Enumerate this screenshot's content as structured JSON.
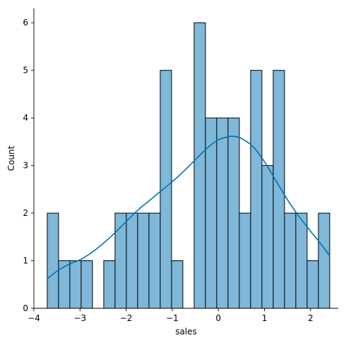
{
  "chart_data": {
    "type": "bar",
    "title": "",
    "xlabel": "sales",
    "ylabel": "Count",
    "xlim": [
      -4,
      2.6
    ],
    "ylim": [
      0,
      6.3
    ],
    "x_ticks": [
      -4,
      -3,
      -2,
      -1,
      0,
      1,
      2
    ],
    "x_tick_labels": [
      "−4",
      "−3",
      "−2",
      "−1",
      "0",
      "1",
      "2"
    ],
    "y_ticks": [
      0,
      1,
      2,
      3,
      4,
      5,
      6
    ],
    "y_tick_labels": [
      "0",
      "1",
      "2",
      "3",
      "4",
      "5",
      "6"
    ],
    "bin_edges": [
      -3.71,
      -3.465,
      -3.22,
      -2.975,
      -2.73,
      -2.485,
      -2.24,
      -1.995,
      -1.75,
      -1.505,
      -1.26,
      -1.015,
      -0.77,
      -0.525,
      -0.28,
      -0.035,
      0.21,
      0.455,
      0.7,
      0.945,
      1.19,
      1.435,
      1.68,
      1.925,
      2.17,
      2.415
    ],
    "counts": [
      2,
      1,
      1,
      1,
      0,
      1,
      2,
      2,
      2,
      2,
      5,
      1,
      0,
      6,
      4,
      4,
      4,
      2,
      5,
      3,
      5,
      2,
      2,
      1,
      2
    ],
    "bar_color": "#7fb8d9",
    "kde_color": "#0072b2",
    "kde_curve": {
      "x": [
        -3.71,
        -3.5,
        -3.25,
        -3.0,
        -2.75,
        -2.5,
        -2.25,
        -2.0,
        -1.75,
        -1.5,
        -1.25,
        -1.0,
        -0.75,
        -0.5,
        -0.25,
        0.0,
        0.25,
        0.35,
        0.5,
        0.75,
        1.0,
        1.25,
        1.5,
        1.75,
        2.0,
        2.25,
        2.415
      ],
      "y": [
        0.62,
        0.78,
        0.92,
        1.02,
        1.17,
        1.36,
        1.58,
        1.82,
        2.06,
        2.26,
        2.46,
        2.66,
        2.88,
        3.12,
        3.36,
        3.54,
        3.61,
        3.61,
        3.57,
        3.4,
        3.08,
        2.68,
        2.28,
        1.93,
        1.62,
        1.32,
        1.1
      ]
    },
    "grid": false,
    "legend": "none"
  }
}
